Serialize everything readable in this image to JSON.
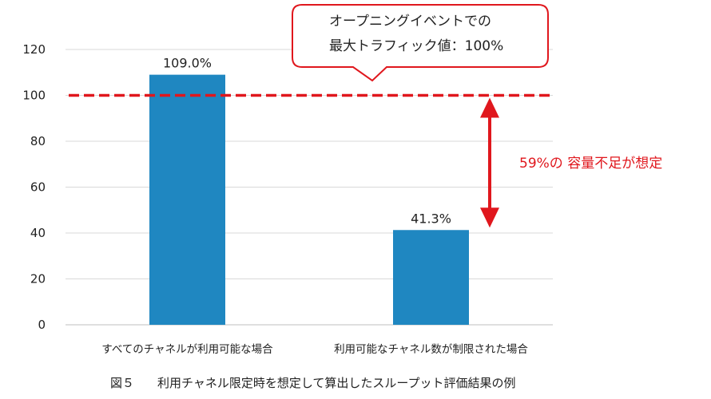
{
  "chart_data": {
    "type": "bar",
    "categories": [
      "すべてのチャネルが利用可能な場合",
      "利用可能なチャネル数が制限された場合"
    ],
    "values": [
      109.0,
      41.3
    ],
    "data_labels": [
      "109.0%",
      "41.3%"
    ],
    "yticks": [
      "0",
      "20",
      "40",
      "60",
      "80",
      "100",
      "120"
    ],
    "ylim": [
      0,
      120
    ],
    "grid": true,
    "reference_line": 100,
    "callout": {
      "line1": "オープニングイベントでの",
      "line2": "最大トラフィック値：100%"
    },
    "gap_annotation": "59%の 容量不足が想定",
    "caption_number": "図５",
    "caption": "利用チャネル限定時を想定して算出したスループット評価結果の例"
  },
  "colors": {
    "bar": "#1f87c1",
    "accent_red": "#e0171d",
    "grid": "#d9d9d9",
    "text": "#222222"
  }
}
